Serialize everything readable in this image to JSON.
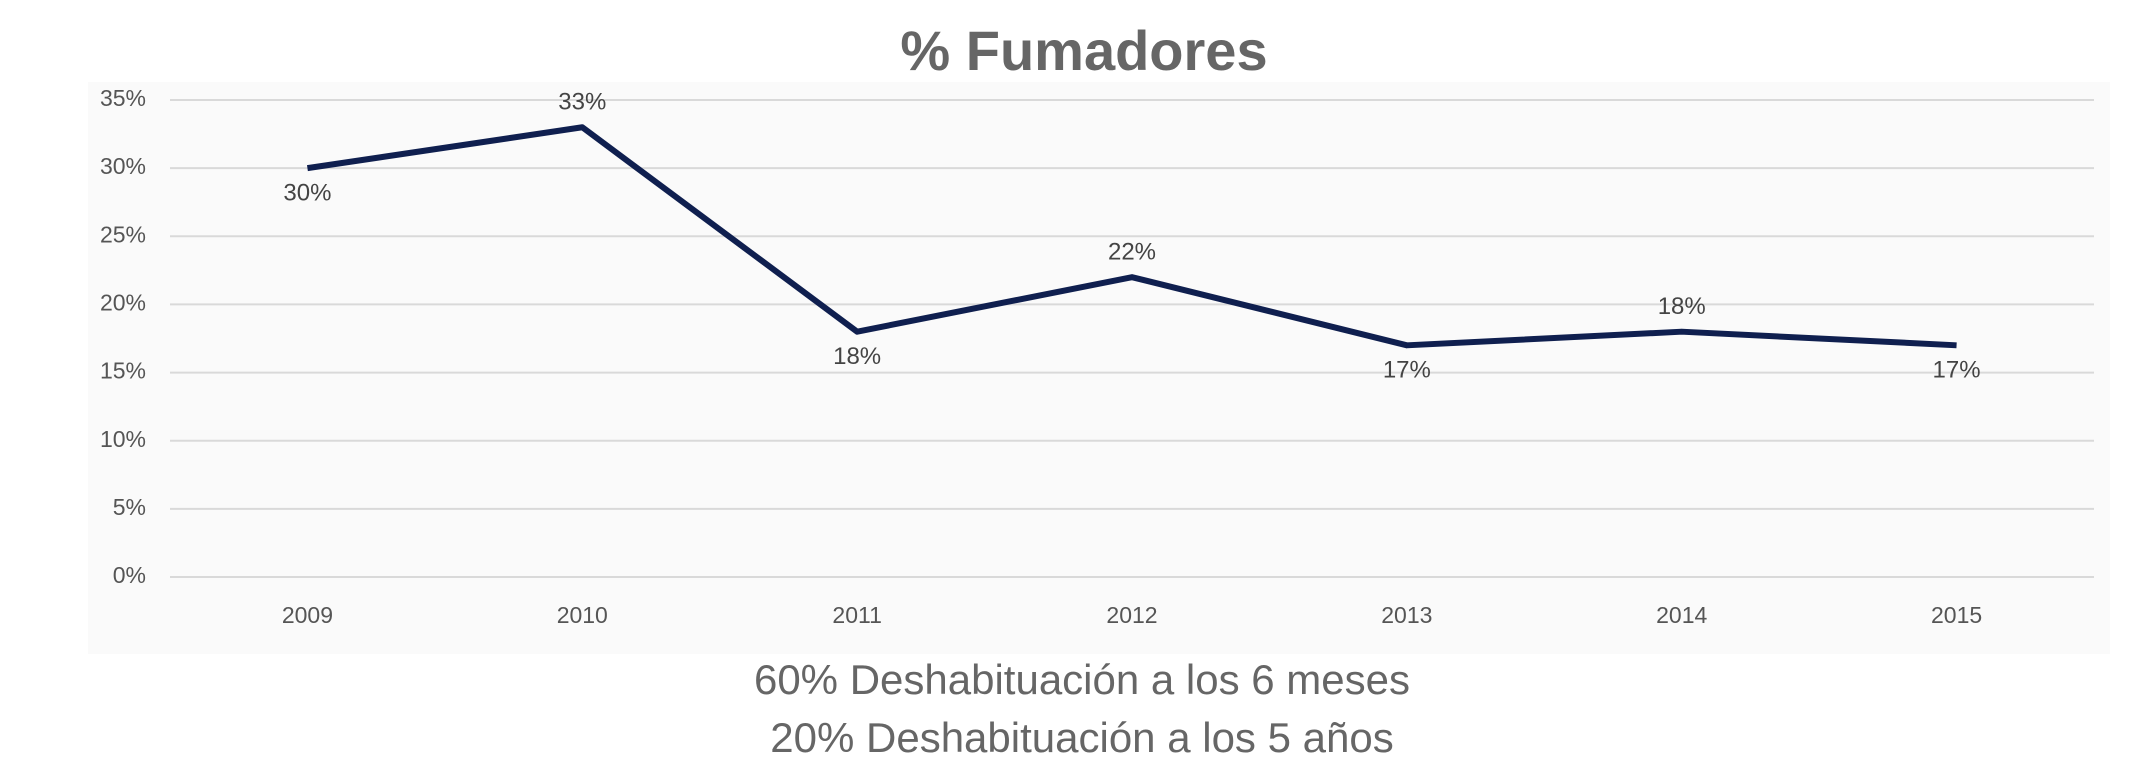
{
  "chart_data": {
    "type": "line",
    "title": "% Fumadores",
    "categories": [
      "2009",
      "2010",
      "2011",
      "2012",
      "2013",
      "2014",
      "2015"
    ],
    "series": [
      {
        "name": "% Fumadores",
        "color": "#0f1f4f",
        "values": [
          30,
          33,
          18,
          22,
          17,
          18,
          17
        ],
        "value_labels": [
          "30%",
          "33%",
          "18%",
          "22%",
          "17%",
          "18%",
          "17%"
        ]
      }
    ],
    "ylim": [
      0,
      35
    ],
    "yticks": [
      {
        "value": 0,
        "label": "0%"
      },
      {
        "value": 5,
        "label": "5%"
      },
      {
        "value": 10,
        "label": "10%"
      },
      {
        "value": 15,
        "label": "15%"
      },
      {
        "value": 20,
        "label": "20%"
      },
      {
        "value": 25,
        "label": "25%"
      },
      {
        "value": 30,
        "label": "30%"
      },
      {
        "value": 35,
        "label": "35%"
      }
    ],
    "grid": true,
    "annotations": [
      "60% Deshabituación a los 6 meses",
      "20% Deshabituación a los 5 años"
    ]
  }
}
